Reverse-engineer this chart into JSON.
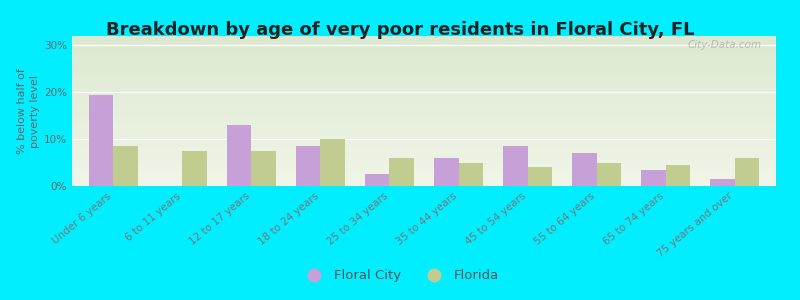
{
  "title": "Breakdown by age of very poor residents in Floral City, FL",
  "ylabel": "% below half of\npoverty level",
  "categories": [
    "Under 6 years",
    "6 to 11 years",
    "12 to 17 years",
    "18 to 24 years",
    "25 to 34 years",
    "35 to 44 years",
    "45 to 54 years",
    "55 to 64 years",
    "65 to 74 years",
    "75 years and over"
  ],
  "floral_city": [
    19.5,
    0,
    13.0,
    8.5,
    2.5,
    6.0,
    8.5,
    7.0,
    3.5,
    1.5
  ],
  "florida": [
    8.5,
    7.5,
    7.5,
    10.0,
    6.0,
    5.0,
    4.0,
    5.0,
    4.5,
    6.0
  ],
  "floral_city_color": "#c8a0d8",
  "florida_color": "#c0cc90",
  "background_outer": "#00eeff",
  "background_plot_top": "#dce8d0",
  "background_plot_bottom": "#f0f5e8",
  "ylim": [
    0,
    32
  ],
  "yticks": [
    0,
    10,
    20,
    30
  ],
  "ytick_labels": [
    "0%",
    "10%",
    "20%",
    "30%"
  ],
  "bar_width": 0.35,
  "title_fontsize": 13,
  "axis_label_fontsize": 8,
  "tick_fontsize": 7.5,
  "legend_labels": [
    "Floral City",
    "Florida"
  ],
  "watermark": "City-Data.com"
}
